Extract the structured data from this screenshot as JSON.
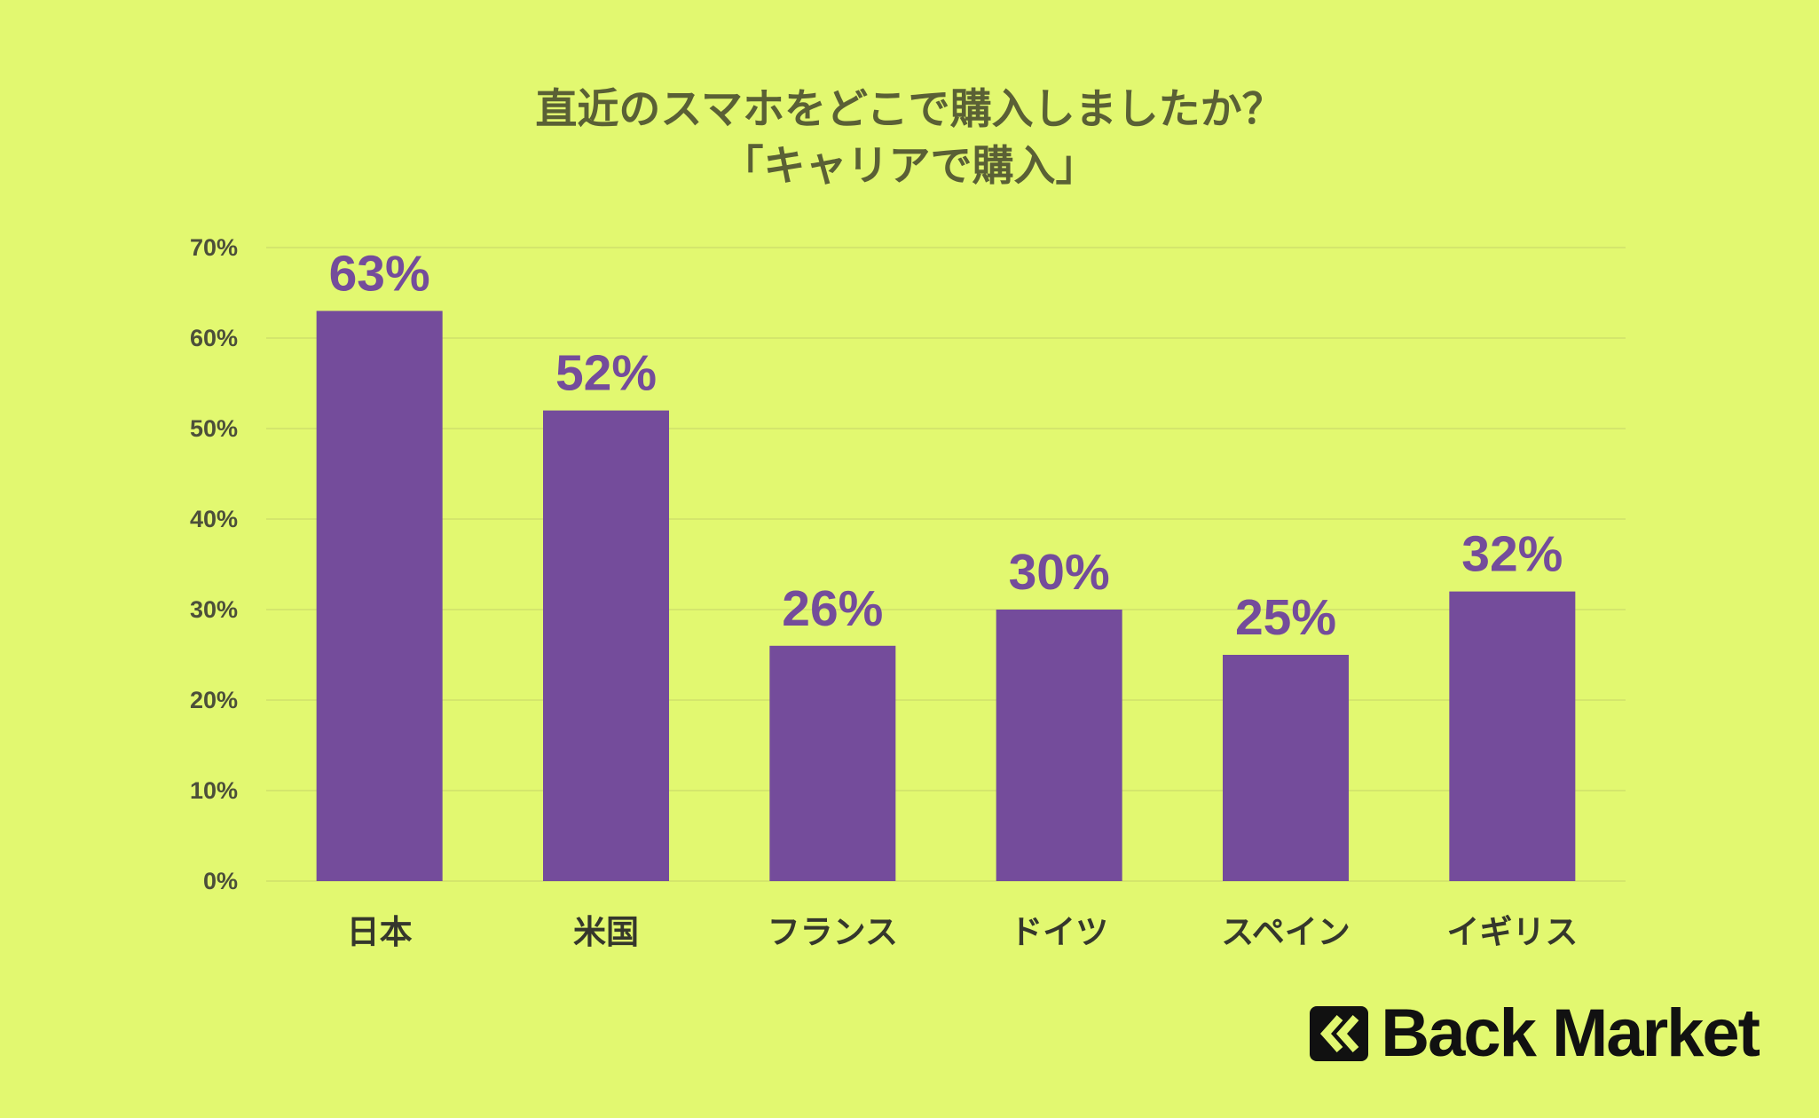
{
  "title_lines": [
    "直近のスマホをどこで購入しましたか？",
    "「キャリアで購入」"
  ],
  "brand": {
    "name": "Back Market"
  },
  "colors": {
    "background": "#e2f870",
    "bar": "#744c9b",
    "value_label": "#744c9b",
    "grid": "#cfe06a"
  },
  "chart_data": {
    "type": "bar",
    "categories": [
      "日本",
      "米国",
      "フランス",
      "ドイツ",
      "スペイン",
      "イギリス"
    ],
    "values": [
      63,
      52,
      26,
      30,
      25,
      32
    ],
    "value_labels": [
      "63%",
      "52%",
      "26%",
      "30%",
      "25%",
      "32%"
    ],
    "title": "直近のスマホをどこで購入しましたか？ 「キャリアで購入」",
    "xlabel": "",
    "ylabel": "",
    "ylim": [
      0,
      70
    ],
    "yticks": [
      0,
      10,
      20,
      30,
      40,
      50,
      60,
      70
    ],
    "ytick_labels": [
      "0%",
      "10%",
      "20%",
      "30%",
      "40%",
      "50%",
      "60%",
      "70%"
    ],
    "grid": true,
    "legend": "none"
  }
}
